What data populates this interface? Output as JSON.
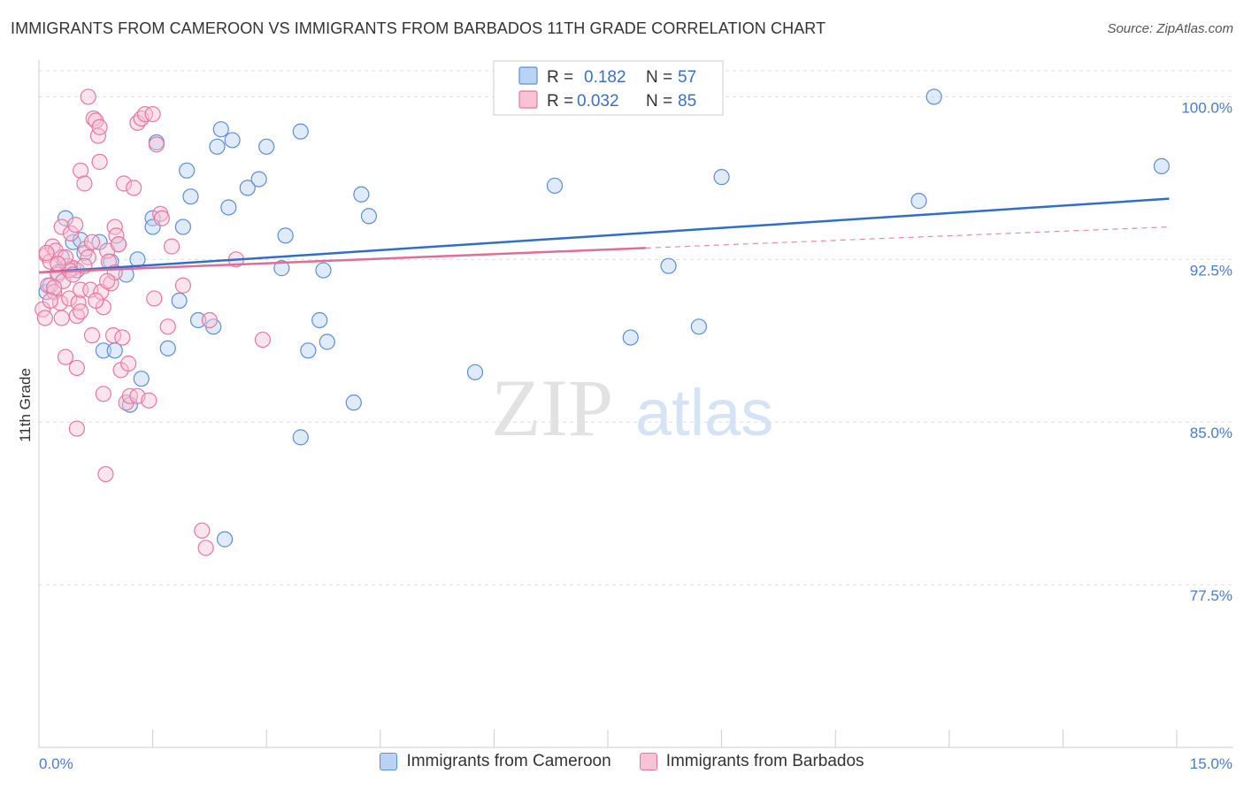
{
  "title": "IMMIGRANTS FROM CAMEROON VS IMMIGRANTS FROM BARBADOS 11TH GRADE CORRELATION CHART",
  "source": "Source: ZipAtlas.com",
  "watermark": {
    "zip": "ZIP",
    "atlas": "atlas"
  },
  "colors": {
    "series1_fill": "#b9d3f5",
    "series1_stroke": "#5b8fd6",
    "series1_line": "#2f6fc9",
    "series2_fill": "#f8c3d5",
    "series2_stroke": "#e8779f",
    "series2_line": "#e06d98",
    "tick_label": "#4a7cc9",
    "grid": "#dddddd"
  },
  "legend": {
    "rows": [
      {
        "r_label": "R =",
        "r_value": "0.182",
        "n_label": "N =",
        "n_value": "57"
      },
      {
        "r_label": "R =",
        "r_value": "0.032",
        "n_label": "N =",
        "n_value": "85"
      }
    ]
  },
  "chart_data": {
    "type": "scatter",
    "title": "IMMIGRANTS FROM CAMEROON VS IMMIGRANTS FROM BARBADOS 11TH GRADE CORRELATION CHART",
    "xlabel": "",
    "ylabel": "11th Grade",
    "xlim": [
      0,
      15
    ],
    "ylim": [
      70.0,
      101.2
    ],
    "x_tick_labels": [
      "0.0%",
      "15.0%"
    ],
    "y_ticks": [
      77.5,
      85.0,
      92.5,
      100.0
    ],
    "y_tick_labels": [
      "77.5%",
      "85.0%",
      "92.5%",
      "100.0%"
    ],
    "grid": true,
    "legend_position": "top-center",
    "series": [
      {
        "name": "Immigrants from Cameroon",
        "r": 0.182,
        "n": 57,
        "trend": {
          "x0": 0.0,
          "y0": 91.9,
          "x1": 14.9,
          "y1": 95.3,
          "dashed_from": null
        },
        "points": [
          [
            0.1,
            91.0
          ],
          [
            0.15,
            91.3
          ],
          [
            0.3,
            92.6
          ],
          [
            0.35,
            94.4
          ],
          [
            0.4,
            92.0
          ],
          [
            0.45,
            93.3
          ],
          [
            0.5,
            92.0
          ],
          [
            0.55,
            93.4
          ],
          [
            0.6,
            92.8
          ],
          [
            0.8,
            93.3
          ],
          [
            0.85,
            88.3
          ],
          [
            0.95,
            92.4
          ],
          [
            1.05,
            93.2
          ],
          [
            1.15,
            91.8
          ],
          [
            1.2,
            85.8
          ],
          [
            1.3,
            92.5
          ],
          [
            1.35,
            87.0
          ],
          [
            1.5,
            94.4
          ],
          [
            1.5,
            94.0
          ],
          [
            1.55,
            97.9
          ],
          [
            1.7,
            88.4
          ],
          [
            1.85,
            90.6
          ],
          [
            1.9,
            94.0
          ],
          [
            1.95,
            96.6
          ],
          [
            2.0,
            95.4
          ],
          [
            2.1,
            89.7
          ],
          [
            2.3,
            89.4
          ],
          [
            2.35,
            97.7
          ],
          [
            2.4,
            98.5
          ],
          [
            2.45,
            79.6
          ],
          [
            2.5,
            94.9
          ],
          [
            2.55,
            98.0
          ],
          [
            2.75,
            95.8
          ],
          [
            2.9,
            96.2
          ],
          [
            3.0,
            97.7
          ],
          [
            3.2,
            92.1
          ],
          [
            3.25,
            93.6
          ],
          [
            3.45,
            98.4
          ],
          [
            3.45,
            84.3
          ],
          [
            3.55,
            88.3
          ],
          [
            3.7,
            89.7
          ],
          [
            3.75,
            92.0
          ],
          [
            3.8,
            88.7
          ],
          [
            4.15,
            85.9
          ],
          [
            4.25,
            95.5
          ],
          [
            4.35,
            94.5
          ],
          [
            5.75,
            87.3
          ],
          [
            6.8,
            95.9
          ],
          [
            7.8,
            88.9
          ],
          [
            8.3,
            92.2
          ],
          [
            8.7,
            89.4
          ],
          [
            9.0,
            96.3
          ],
          [
            11.6,
            95.2
          ],
          [
            11.8,
            100.0
          ],
          [
            14.8,
            96.8
          ],
          [
            0.25,
            91.9
          ],
          [
            1.0,
            88.3
          ]
        ]
      },
      {
        "name": "Immigrants from Barbados",
        "r": 0.032,
        "n": 85,
        "trend": {
          "x0": 0.0,
          "y0": 91.9,
          "x1": 14.9,
          "y1": 94.0,
          "dashed_from": 8.0
        },
        "points": [
          [
            0.05,
            90.2
          ],
          [
            0.08,
            89.8
          ],
          [
            0.1,
            92.7
          ],
          [
            0.12,
            91.3
          ],
          [
            0.15,
            92.4
          ],
          [
            0.18,
            93.1
          ],
          [
            0.2,
            91.0
          ],
          [
            0.22,
            92.9
          ],
          [
            0.25,
            91.8
          ],
          [
            0.28,
            90.5
          ],
          [
            0.3,
            94.0
          ],
          [
            0.32,
            91.5
          ],
          [
            0.35,
            88.0
          ],
          [
            0.38,
            92.2
          ],
          [
            0.4,
            90.7
          ],
          [
            0.42,
            93.7
          ],
          [
            0.45,
            92.1
          ],
          [
            0.48,
            94.1
          ],
          [
            0.5,
            89.9
          ],
          [
            0.52,
            90.5
          ],
          [
            0.55,
            91.1
          ],
          [
            0.5,
            84.7
          ],
          [
            0.5,
            87.5
          ],
          [
            0.55,
            96.6
          ],
          [
            0.6,
            96.0
          ],
          [
            0.62,
            93.0
          ],
          [
            0.65,
            92.6
          ],
          [
            0.68,
            91.1
          ],
          [
            0.7,
            89.0
          ],
          [
            0.72,
            99.0
          ],
          [
            0.75,
            98.9
          ],
          [
            0.78,
            98.2
          ],
          [
            0.8,
            98.6
          ],
          [
            0.8,
            97.0
          ],
          [
            0.82,
            91.0
          ],
          [
            0.85,
            90.3
          ],
          [
            0.85,
            86.3
          ],
          [
            0.88,
            82.6
          ],
          [
            0.9,
            92.9
          ],
          [
            0.92,
            92.4
          ],
          [
            0.95,
            91.4
          ],
          [
            0.98,
            89.0
          ],
          [
            1.0,
            94.0
          ],
          [
            1.02,
            93.6
          ],
          [
            1.05,
            93.2
          ],
          [
            1.08,
            87.4
          ],
          [
            1.1,
            88.9
          ],
          [
            1.12,
            96.0
          ],
          [
            1.15,
            85.9
          ],
          [
            1.18,
            87.7
          ],
          [
            1.2,
            86.2
          ],
          [
            1.25,
            95.8
          ],
          [
            1.3,
            86.2
          ],
          [
            1.3,
            98.8
          ],
          [
            1.35,
            99.0
          ],
          [
            1.4,
            99.2
          ],
          [
            1.45,
            86.0
          ],
          [
            1.5,
            99.2
          ],
          [
            1.52,
            90.7
          ],
          [
            1.55,
            97.8
          ],
          [
            1.6,
            94.6
          ],
          [
            1.62,
            94.4
          ],
          [
            1.7,
            89.4
          ],
          [
            1.75,
            93.1
          ],
          [
            1.9,
            91.3
          ],
          [
            2.15,
            80.0
          ],
          [
            2.2,
            79.2
          ],
          [
            2.25,
            89.7
          ],
          [
            2.6,
            92.5
          ],
          [
            2.95,
            88.8
          ],
          [
            0.65,
            100.0
          ],
          [
            0.4,
            92.0
          ],
          [
            0.3,
            89.8
          ],
          [
            0.2,
            91.2
          ],
          [
            0.6,
            92.2
          ],
          [
            0.75,
            90.6
          ],
          [
            0.45,
            91.8
          ],
          [
            1.0,
            91.9
          ],
          [
            0.9,
            91.5
          ],
          [
            0.35,
            92.6
          ],
          [
            0.15,
            90.6
          ],
          [
            0.55,
            90.1
          ],
          [
            0.25,
            92.3
          ],
          [
            0.7,
            93.3
          ],
          [
            0.1,
            92.8
          ]
        ]
      }
    ]
  }
}
